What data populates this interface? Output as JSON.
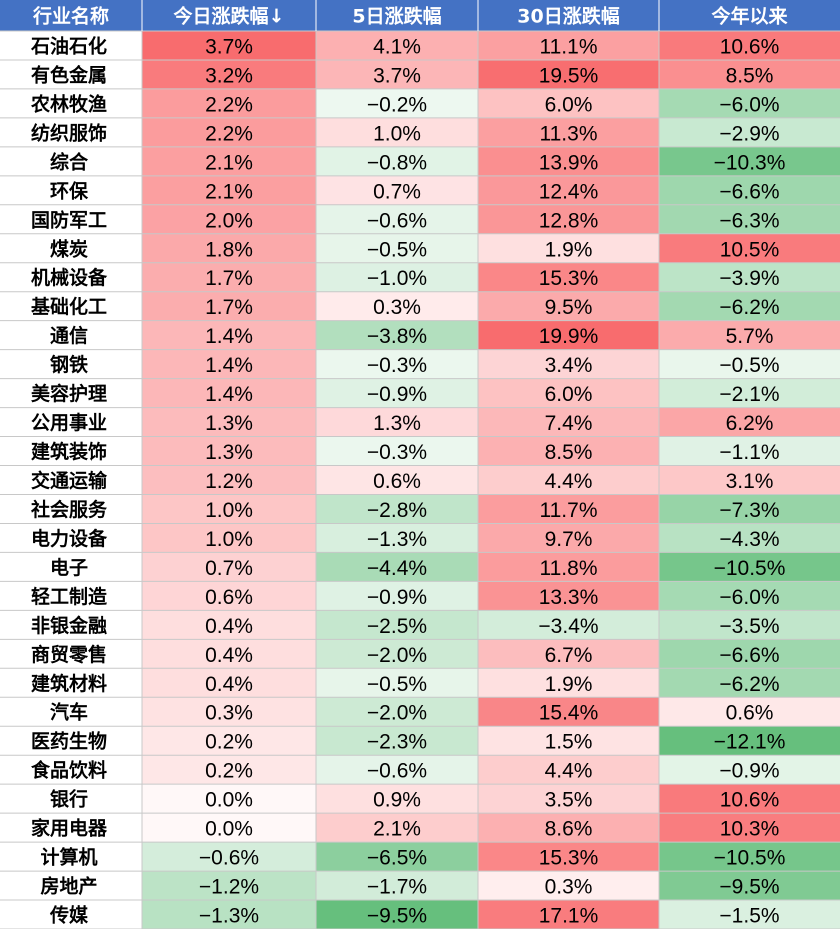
{
  "colors": {
    "header_bg": "#4472C4",
    "header_text": "#ffffff",
    "name_col_bg": "#ffffff",
    "positive": "#F8696B",
    "negative": "#63BE7B",
    "neutral": "#ffffff"
  },
  "chart_data": {
    "type": "table",
    "columns": [
      "行业名称",
      "今日涨跌幅↓",
      "5日涨跌幅",
      "30日涨跌幅",
      "今年以来"
    ],
    "color_scale_max_abs": [
      3.7,
      9.5,
      19.9,
      12.1
    ],
    "rows": [
      {
        "name": "石油石化",
        "values": [
          "3.7%",
          "4.1%",
          "11.1%",
          "10.6%"
        ]
      },
      {
        "name": "有色金属",
        "values": [
          "3.2%",
          "3.7%",
          "19.5%",
          "8.5%"
        ]
      },
      {
        "name": "农林牧渔",
        "values": [
          "2.2%",
          "−0.2%",
          "6.0%",
          "−6.0%"
        ]
      },
      {
        "name": "纺织服饰",
        "values": [
          "2.2%",
          "1.0%",
          "11.3%",
          "−2.9%"
        ]
      },
      {
        "name": "综合",
        "values": [
          "2.1%",
          "−0.8%",
          "13.9%",
          "−10.3%"
        ]
      },
      {
        "name": "环保",
        "values": [
          "2.1%",
          "0.7%",
          "12.4%",
          "−6.6%"
        ]
      },
      {
        "name": "国防军工",
        "values": [
          "2.0%",
          "−0.6%",
          "12.8%",
          "−6.3%"
        ]
      },
      {
        "name": "煤炭",
        "values": [
          "1.8%",
          "−0.5%",
          "1.9%",
          "10.5%"
        ]
      },
      {
        "name": "机械设备",
        "values": [
          "1.7%",
          "−1.0%",
          "15.3%",
          "−3.9%"
        ]
      },
      {
        "name": "基础化工",
        "values": [
          "1.7%",
          "0.3%",
          "9.5%",
          "−6.2%"
        ]
      },
      {
        "name": "通信",
        "values": [
          "1.4%",
          "−3.8%",
          "19.9%",
          "5.7%"
        ]
      },
      {
        "name": "钢铁",
        "values": [
          "1.4%",
          "−0.3%",
          "3.4%",
          "−0.5%"
        ]
      },
      {
        "name": "美容护理",
        "values": [
          "1.4%",
          "−0.9%",
          "6.0%",
          "−2.1%"
        ]
      },
      {
        "name": "公用事业",
        "values": [
          "1.3%",
          "1.3%",
          "7.4%",
          "6.2%"
        ]
      },
      {
        "name": "建筑装饰",
        "values": [
          "1.3%",
          "−0.3%",
          "8.5%",
          "−1.1%"
        ]
      },
      {
        "name": "交通运输",
        "values": [
          "1.2%",
          "0.6%",
          "4.4%",
          "3.1%"
        ]
      },
      {
        "name": "社会服务",
        "values": [
          "1.0%",
          "−2.8%",
          "11.7%",
          "−7.3%"
        ]
      },
      {
        "name": "电力设备",
        "values": [
          "1.0%",
          "−1.3%",
          "9.7%",
          "−4.3%"
        ]
      },
      {
        "name": "电子",
        "values": [
          "0.7%",
          "−4.4%",
          "11.8%",
          "−10.5%"
        ]
      },
      {
        "name": "轻工制造",
        "values": [
          "0.6%",
          "−0.9%",
          "13.3%",
          "−6.0%"
        ]
      },
      {
        "name": "非银金融",
        "values": [
          "0.4%",
          "−2.5%",
          "−3.4%",
          "−3.5%"
        ]
      },
      {
        "name": "商贸零售",
        "values": [
          "0.4%",
          "−2.0%",
          "6.7%",
          "−6.6%"
        ]
      },
      {
        "name": "建筑材料",
        "values": [
          "0.4%",
          "−0.5%",
          "1.9%",
          "−6.2%"
        ]
      },
      {
        "name": "汽车",
        "values": [
          "0.3%",
          "−2.0%",
          "15.4%",
          "0.6%"
        ]
      },
      {
        "name": "医药生物",
        "values": [
          "0.2%",
          "−2.3%",
          "1.5%",
          "−12.1%"
        ]
      },
      {
        "name": "食品饮料",
        "values": [
          "0.2%",
          "−0.6%",
          "4.4%",
          "−0.9%"
        ]
      },
      {
        "name": "银行",
        "values": [
          "0.0%",
          "0.9%",
          "3.5%",
          "10.6%"
        ]
      },
      {
        "name": "家用电器",
        "values": [
          "0.0%",
          "2.1%",
          "8.6%",
          "10.3%"
        ]
      },
      {
        "name": "计算机",
        "values": [
          "−0.6%",
          "−6.5%",
          "15.3%",
          "−10.5%"
        ]
      },
      {
        "name": "房地产",
        "values": [
          "−1.2%",
          "−1.7%",
          "0.3%",
          "−9.5%"
        ]
      },
      {
        "name": "传媒",
        "values": [
          "−1.3%",
          "−9.5%",
          "17.1%",
          "−1.5%"
        ]
      }
    ]
  }
}
